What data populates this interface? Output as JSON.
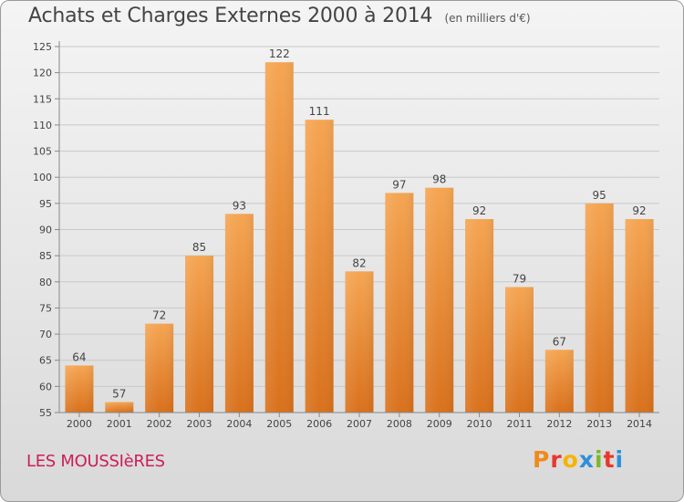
{
  "header": {
    "title": "Achats et Charges Externes 2000 à 2014",
    "subtitle": "(en milliers d'€)"
  },
  "footer": {
    "commune": "LES MOUSSIèRES",
    "logo_letters": [
      "P",
      "r",
      "o",
      "x",
      "i",
      "t",
      "i"
    ],
    "logo_colors": [
      "#f08a1c",
      "#e8382c",
      "#f5b400",
      "#2f8fd8",
      "#7ab829",
      "#e8382c",
      "#2f8fd8"
    ]
  },
  "colors": {
    "bar_light": "#f5a552",
    "bar_dark": "#d9711c",
    "axis": "#888888",
    "grid": "#c8c8c8"
  },
  "chart_data": {
    "type": "bar",
    "title": "Achats et Charges Externes 2000 à 2014",
    "subtitle": "(en milliers d'€)",
    "categories": [
      "2000",
      "2001",
      "2002",
      "2003",
      "2004",
      "2005",
      "2006",
      "2007",
      "2008",
      "2009",
      "2010",
      "2011",
      "2012",
      "2013",
      "2014"
    ],
    "values": [
      64,
      57,
      72,
      85,
      93,
      122,
      111,
      82,
      97,
      98,
      92,
      79,
      67,
      95,
      92
    ],
    "ylim": [
      55,
      125
    ],
    "yticks": [
      55,
      60,
      65,
      70,
      75,
      80,
      85,
      90,
      95,
      100,
      105,
      110,
      115,
      120,
      125
    ],
    "grid": true
  }
}
